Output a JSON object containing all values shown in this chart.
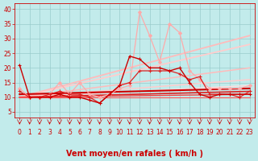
{
  "xlabel": "Vent moyen/en rafales ( km/h )",
  "xlim": [
    -0.5,
    23.5
  ],
  "ylim": [
    3,
    42
  ],
  "yticks": [
    5,
    10,
    15,
    20,
    25,
    30,
    35,
    40
  ],
  "xticks": [
    0,
    1,
    2,
    3,
    4,
    5,
    6,
    7,
    8,
    9,
    10,
    11,
    12,
    13,
    14,
    15,
    16,
    17,
    18,
    19,
    20,
    21,
    22,
    23
  ],
  "bg_color": "#c2ebeb",
  "grid_color": "#99cccc",
  "lines": [
    {
      "x": [
        0,
        1,
        2,
        3,
        4,
        5,
        6,
        7,
        8,
        9,
        10,
        11,
        12,
        13,
        14,
        15,
        16,
        17,
        18,
        19,
        20,
        21,
        22,
        23
      ],
      "y": [
        13,
        10,
        10,
        11,
        15,
        11,
        15,
        11,
        10,
        11,
        13,
        14,
        39,
        31,
        22,
        35,
        32,
        19,
        16,
        13,
        13,
        13,
        13,
        14
      ],
      "color": "#ffaaaa",
      "lw": 0.9,
      "marker": "D",
      "ms": 2.0,
      "zorder": 4
    },
    {
      "x": [
        0,
        1,
        2,
        3,
        4,
        5,
        6,
        7,
        8,
        9,
        10,
        11,
        12,
        13,
        14,
        15,
        16,
        17,
        18,
        19,
        20,
        21,
        22,
        23
      ],
      "y": [
        21,
        10,
        10,
        10,
        11,
        10,
        10,
        9,
        8,
        11,
        14,
        24,
        23,
        20,
        20,
        19,
        20,
        15,
        11,
        10,
        11,
        11,
        11,
        11
      ],
      "color": "#cc0000",
      "lw": 1.0,
      "marker": "+",
      "ms": 3.5,
      "zorder": 6
    },
    {
      "x": [
        0,
        1,
        2,
        3,
        4,
        5,
        6,
        7,
        8,
        9,
        10,
        11,
        12,
        13,
        14,
        15,
        16,
        17,
        18,
        19,
        20,
        21,
        22,
        23
      ],
      "y": [
        12,
        10,
        10,
        11,
        12,
        11,
        11,
        10,
        8,
        11,
        14,
        15,
        19,
        19,
        19,
        19,
        18,
        16,
        17,
        11,
        11,
        11,
        10,
        12
      ],
      "color": "#dd2222",
      "lw": 0.9,
      "marker": "+",
      "ms": 3.0,
      "zorder": 5
    },
    {
      "x": [
        0,
        23
      ],
      "y": [
        10,
        31
      ],
      "color": "#ffbbbb",
      "lw": 1.3,
      "marker": null,
      "ms": 0,
      "zorder": 2
    },
    {
      "x": [
        0,
        23
      ],
      "y": [
        10,
        28
      ],
      "color": "#ffcccc",
      "lw": 1.3,
      "marker": null,
      "ms": 0,
      "zorder": 2
    },
    {
      "x": [
        0,
        23
      ],
      "y": [
        10,
        20
      ],
      "color": "#ffbbbb",
      "lw": 1.1,
      "marker": null,
      "ms": 0,
      "zorder": 2
    },
    {
      "x": [
        0,
        23
      ],
      "y": [
        10,
        16
      ],
      "color": "#ffcccc",
      "lw": 1.1,
      "marker": null,
      "ms": 0,
      "zorder": 2
    },
    {
      "x": [
        0,
        23
      ],
      "y": [
        10,
        14
      ],
      "color": "#ffdddd",
      "lw": 1.0,
      "marker": null,
      "ms": 0,
      "zorder": 2
    },
    {
      "x": [
        0,
        23
      ],
      "y": [
        11,
        13
      ],
      "color": "#cc0000",
      "lw": 1.5,
      "marker": null,
      "ms": 0,
      "zorder": 3
    },
    {
      "x": [
        0,
        23
      ],
      "y": [
        10,
        12
      ],
      "color": "#dd2222",
      "lw": 1.2,
      "marker": null,
      "ms": 0,
      "zorder": 3
    },
    {
      "x": [
        0,
        23
      ],
      "y": [
        10,
        11
      ],
      "color": "#ee4444",
      "lw": 1.0,
      "marker": null,
      "ms": 0,
      "zorder": 3
    },
    {
      "x": [
        0,
        23
      ],
      "y": [
        10,
        10
      ],
      "color": "#ff5555",
      "lw": 0.8,
      "marker": null,
      "ms": 0,
      "zorder": 3
    }
  ],
  "arrow_color": "#cc0000",
  "xlabel_color": "#cc0000",
  "tick_color": "#cc0000",
  "axis_label_fontsize": 7,
  "tick_fontsize": 5.5
}
